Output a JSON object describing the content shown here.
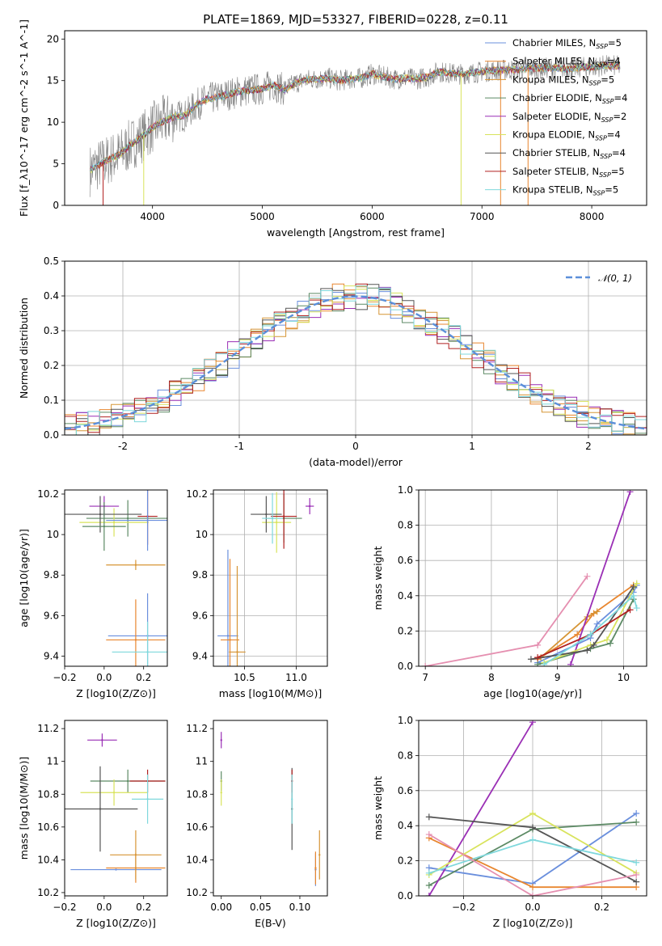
{
  "title": "PLATE=1869, MJD=53327, FIBERID=0228, z=0.11",
  "colors": [
    "#6a8fdd",
    "#e8862f",
    "#d69535",
    "#5c8a64",
    "#9a2fb5",
    "#d8e35c",
    "#555555",
    "#b02020",
    "#7fd8dc"
  ],
  "chart_data": [
    {
      "id": "spectrum",
      "type": "line",
      "xlabel": "wavelength [Angstrom, rest frame]",
      "ylabel": "Flux [f_λ10^-17 erg cm^-2 s^-1 A^-1]",
      "xlim": [
        3200,
        8500
      ],
      "ylim": [
        0,
        21
      ],
      "xticks": [
        4000,
        5000,
        6000,
        7000,
        8000
      ],
      "yticks": [
        0,
        5,
        10,
        15,
        20
      ],
      "grid": false,
      "legend": "right",
      "series": [
        {
          "name": "Chabrier MILES, N_SSP=5",
          "color": "#6a8fdd"
        },
        {
          "name": "Salpeter MILES, N_SSP=4",
          "color": "#e8862f"
        },
        {
          "name": "Kroupa MILES, N_SSP=5",
          "color": "#d69535"
        },
        {
          "name": "Chabrier ELODIE, N_SSP=4",
          "color": "#5c8a64"
        },
        {
          "name": "Salpeter ELODIE, N_SSP=2",
          "color": "#9a2fb5"
        },
        {
          "name": "Kroupa ELODIE, N_SSP=4",
          "color": "#d8e35c"
        },
        {
          "name": "Chabrier STELIB, N_SSP=4",
          "color": "#555555"
        },
        {
          "name": "Salpeter STELIB, N_SSP=5",
          "color": "#b02020"
        },
        {
          "name": "Kroupa STELIB, N_SSP=5",
          "color": "#7fd8dc"
        }
      ],
      "data_color": "#808080",
      "continuum": {
        "x": [
          3430,
          3500,
          3600,
          3700,
          3800,
          3900,
          4000,
          4100,
          4200,
          4300,
          4400,
          4500,
          4600,
          4700,
          4800,
          4900,
          5000,
          5100,
          5200,
          5300,
          5400,
          5500,
          5600,
          5700,
          5800,
          5900,
          6000,
          6100,
          6200,
          6300,
          6400,
          6500,
          6600,
          6700,
          6800,
          6900,
          7000,
          7100,
          7200,
          7300,
          7400,
          7500,
          7600,
          7700,
          7800,
          7900,
          8000,
          8100,
          8200,
          8260
        ],
        "y": [
          4.2,
          4.8,
          5.5,
          6.1,
          7.3,
          8.2,
          9.4,
          10.1,
          10.7,
          10.8,
          12.1,
          12.8,
          13.0,
          13.4,
          13.7,
          13.9,
          14.0,
          14.5,
          13.9,
          14.7,
          15.1,
          15.2,
          15.3,
          15.0,
          15.2,
          15.3,
          15.8,
          15.5,
          15.2,
          15.3,
          15.2,
          15.4,
          16.1,
          15.9,
          15.8,
          15.9,
          16.1,
          16.2,
          16.3,
          16.3,
          16.4,
          16.5,
          16.5,
          16.5,
          16.4,
          16.6,
          16.6,
          16.8,
          16.8,
          16.7
        ]
      }
    },
    {
      "id": "residuals",
      "type": "line",
      "xlabel": "(data-model)/error",
      "ylabel": "Normed distribution",
      "xlim": [
        -2.5,
        2.5
      ],
      "ylim": [
        0,
        0.5
      ],
      "xticks": [
        -2,
        -1,
        0,
        1,
        2
      ],
      "yticks": [
        0.0,
        0.1,
        0.2,
        0.3,
        0.4,
        0.5
      ],
      "grid": true,
      "legend": "top-right",
      "legend_label": "𝒩(0, 1)",
      "legend_color": "#5b8fd9",
      "bin_width": 0.1
    },
    {
      "id": "age-vs-Z",
      "type": "scatter",
      "xlabel": "Z [log10(Z/Z⊙)]",
      "ylabel": "age  [log10(age/yr)]",
      "xlim": [
        -0.2,
        0.32
      ],
      "ylim": [
        9.35,
        10.22
      ],
      "xticks": [
        -0.2,
        0.0,
        0.2
      ],
      "xticklabels": [
        "−0.2",
        "0.0",
        "0.2"
      ],
      "yticks": [
        9.4,
        9.6,
        9.8,
        10.0,
        10.2
      ],
      "grid": false,
      "points": [
        {
          "c": 0,
          "x": 0.22,
          "y": 9.5,
          "xe": 0.4,
          "ye": 0.42
        },
        {
          "c": 1,
          "x": 0.16,
          "y": 9.48,
          "xe": 0.3,
          "ye": 0.4
        },
        {
          "c": 2,
          "x": 0.16,
          "y": 9.85,
          "xe": 0.3,
          "ye": 0.05
        },
        {
          "c": 3,
          "x": 0.12,
          "y": 10.08,
          "xe": 0.42,
          "ye": 0.18
        },
        {
          "c": 4,
          "x": 0.0,
          "y": 10.14,
          "xe": 0.15,
          "ye": 0.1
        },
        {
          "c": 5,
          "x": 0.05,
          "y": 10.06,
          "xe": 0.35,
          "ye": 0.14
        },
        {
          "c": 6,
          "x": -0.02,
          "y": 10.1,
          "xe": 0.42,
          "ye": 0.18
        },
        {
          "c": 7,
          "x": 0.22,
          "y": 10.09,
          "xe": 0.1,
          "ye": 0.28
        },
        {
          "c": 8,
          "x": 0.22,
          "y": 9.42,
          "xe": 0.36,
          "ye": 0.3
        },
        {
          "c": 0,
          "x": 0.22,
          "y": 10.07,
          "xe": 0.42,
          "ye": 0.3
        },
        {
          "c": 3,
          "x": 0.0,
          "y": 10.04,
          "xe": 0.22,
          "ye": 0.24
        }
      ]
    },
    {
      "id": "age-vs-mass",
      "type": "scatter",
      "xlabel": "mass [log10(M/M⊙)]",
      "ylabel": "",
      "xlim": [
        10.2,
        11.3
      ],
      "ylim": [
        9.35,
        10.22
      ],
      "xticks": [
        10.5,
        11.0
      ],
      "xticklabels": [
        "10.5",
        "11.0"
      ],
      "yticks": [
        9.4,
        9.6,
        9.8,
        10.0,
        10.2
      ],
      "grid": true,
      "points": [
        {
          "c": 0,
          "x": 10.34,
          "y": 9.5,
          "xe": 0.2,
          "ye": 0.85
        },
        {
          "c": 1,
          "x": 10.36,
          "y": 9.48,
          "xe": 0.18,
          "ye": 0.8
        },
        {
          "c": 2,
          "x": 10.43,
          "y": 9.42,
          "xe": 0.16,
          "ye": 0.85
        },
        {
          "c": 3,
          "x": 10.88,
          "y": 10.08,
          "xe": 0.35,
          "ye": 0.24
        },
        {
          "c": 4,
          "x": 11.13,
          "y": 10.14,
          "xe": 0.08,
          "ye": 0.08
        },
        {
          "c": 5,
          "x": 10.81,
          "y": 10.06,
          "xe": 0.28,
          "ye": 0.3
        },
        {
          "c": 6,
          "x": 10.71,
          "y": 10.1,
          "xe": 0.3,
          "ye": 0.18
        },
        {
          "c": 7,
          "x": 10.88,
          "y": 10.09,
          "xe": 0.25,
          "ye": 0.32
        },
        {
          "c": 8,
          "x": 10.77,
          "y": 10.08,
          "xe": 0.2,
          "ye": 0.25
        }
      ]
    },
    {
      "id": "massweight-vs-age",
      "type": "line",
      "xlabel": "age  [log10(age/yr)]",
      "ylabel": "mass weight",
      "xlim": [
        6.9,
        10.35
      ],
      "ylim": [
        0,
        1
      ],
      "xticks": [
        7,
        8,
        9,
        10
      ],
      "xticklabels": [
        "7",
        "8",
        "9",
        "10"
      ],
      "yticks": [
        0.0,
        0.2,
        0.4,
        0.6,
        0.8,
        1.0
      ],
      "grid": true,
      "series": [
        {
          "c": 0,
          "x": [
            8.7,
            9.5,
            9.6,
            10.15,
            10.2
          ],
          "y": [
            0.02,
            0.16,
            0.24,
            0.42,
            0.46
          ]
        },
        {
          "c": 1,
          "x": [
            8.7,
            9.3,
            9.55,
            10.15
          ],
          "y": [
            0.04,
            0.18,
            0.3,
            0.46
          ]
        },
        {
          "c": 2,
          "x": [
            8.75,
            9.45,
            9.6
          ],
          "y": [
            0.05,
            0.28,
            0.31
          ]
        },
        {
          "c": 3,
          "x": [
            8.7,
            9.5,
            9.8,
            10.15
          ],
          "y": [
            0.01,
            0.1,
            0.13,
            0.38
          ]
        },
        {
          "c": 4,
          "x": [
            9.2,
            10.1
          ],
          "y": [
            0.01,
            0.99
          ]
        },
        {
          "c": 5,
          "x": [
            8.8,
            9.5,
            9.75,
            10.2
          ],
          "y": [
            0.02,
            0.12,
            0.15,
            0.47
          ]
        },
        {
          "c": 6,
          "x": [
            8.6,
            9.45,
            9.55,
            10.15
          ],
          "y": [
            0.04,
            0.09,
            0.12,
            0.45
          ]
        },
        {
          "c": 7,
          "x": [
            8.7,
            9.5,
            10.1
          ],
          "y": [
            0.05,
            0.18,
            0.32
          ]
        },
        {
          "c": 8,
          "x": [
            8.8,
            9.5,
            10.15,
            10.2
          ],
          "y": [
            0.01,
            0.18,
            0.4,
            0.33
          ]
        },
        {
          "c": 2,
          "x": [
            7.0,
            8.7,
            9.45
          ],
          "y": [
            0.0,
            0.12,
            0.51
          ],
          "alt": "#e58fb0"
        }
      ]
    },
    {
      "id": "mass-vs-Z",
      "type": "scatter",
      "xlabel": "Z [log10(Z/Z⊙)]",
      "ylabel": "mass [log10(M/M⊙)]",
      "xlim": [
        -0.2,
        0.32
      ],
      "ylim": [
        10.18,
        11.25
      ],
      "xticks": [
        -0.2,
        0.0,
        0.2
      ],
      "xticklabels": [
        "−0.2",
        "0.0",
        "0.2"
      ],
      "yticks": [
        10.2,
        10.4,
        10.6,
        10.8,
        11.0,
        11.2
      ],
      "grid": false,
      "points": [
        {
          "c": 0,
          "x": 0.06,
          "y": 10.34,
          "xe": 0.46,
          "ye": 0.0
        },
        {
          "c": 1,
          "x": 0.16,
          "y": 10.35,
          "xe": 0.3,
          "ye": 0.18
        },
        {
          "c": 2,
          "x": 0.16,
          "y": 10.43,
          "xe": 0.26,
          "ye": 0.3
        },
        {
          "c": 3,
          "x": 0.12,
          "y": 10.88,
          "xe": 0.38,
          "ye": 0.14
        },
        {
          "c": 4,
          "x": -0.01,
          "y": 11.13,
          "xe": 0.15,
          "ye": 0.08
        },
        {
          "c": 5,
          "x": 0.05,
          "y": 10.81,
          "xe": 0.34,
          "ye": 0.16
        },
        {
          "c": 6,
          "x": -0.02,
          "y": 10.71,
          "xe": 0.38,
          "ye": 0.52
        },
        {
          "c": 7,
          "x": 0.22,
          "y": 10.88,
          "xe": 0.18,
          "ye": 0.14
        },
        {
          "c": 8,
          "x": 0.22,
          "y": 10.77,
          "xe": 0.16,
          "ye": 0.3
        }
      ]
    },
    {
      "id": "mass-vs-ebv",
      "type": "scatter",
      "xlabel": "E(B-V)",
      "ylabel": "",
      "xlim": [
        -0.01,
        0.135
      ],
      "ylim": [
        10.18,
        11.25
      ],
      "xticks": [
        0.0,
        0.05,
        0.1
      ],
      "xticklabels": [
        "0.00",
        "0.05",
        "0.10"
      ],
      "yticks": [
        10.2,
        10.4,
        10.6,
        10.8,
        11.0,
        11.2
      ],
      "grid": false,
      "points": [
        {
          "c": 0,
          "x": 0.12,
          "y": 10.34,
          "ye": 0.2
        },
        {
          "c": 1,
          "x": 0.12,
          "y": 10.35,
          "ye": 0.2
        },
        {
          "c": 2,
          "x": 0.125,
          "y": 10.43,
          "ye": 0.3
        },
        {
          "c": 3,
          "x": 0.0,
          "y": 10.88,
          "ye": 0.12
        },
        {
          "c": 4,
          "x": 0.0,
          "y": 11.13,
          "ye": 0.1
        },
        {
          "c": 5,
          "x": 0.0,
          "y": 10.81,
          "ye": 0.16
        },
        {
          "c": 6,
          "x": 0.09,
          "y": 10.71,
          "ye": 0.5
        },
        {
          "c": 7,
          "x": 0.09,
          "y": 10.88,
          "ye": 0.14
        },
        {
          "c": 8,
          "x": 0.09,
          "y": 10.77,
          "ye": 0.3
        }
      ]
    },
    {
      "id": "massweight-vs-Z",
      "type": "line",
      "xlabel": "Z [log10(Z/Z⊙)]",
      "ylabel": "mass weight",
      "xlim": [
        -0.33,
        0.33
      ],
      "ylim": [
        0,
        1
      ],
      "xticks": [
        -0.2,
        0.0,
        0.2
      ],
      "xticklabels": [
        "−0.2",
        "0.0",
        "0.2"
      ],
      "yticks": [
        0.0,
        0.2,
        0.4,
        0.6,
        0.8,
        1.0
      ],
      "grid": true,
      "series": [
        {
          "c": 0,
          "x": [
            -0.3,
            0.0,
            0.3
          ],
          "y": [
            0.16,
            0.07,
            0.47
          ]
        },
        {
          "c": 1,
          "x": [
            -0.3,
            0.0,
            0.3
          ],
          "y": [
            0.33,
            0.05,
            0.05
          ]
        },
        {
          "c": 3,
          "x": [
            -0.3,
            0.0,
            0.3
          ],
          "y": [
            0.06,
            0.38,
            0.42
          ]
        },
        {
          "c": 4,
          "x": [
            -0.3,
            0.0
          ],
          "y": [
            0.0,
            0.99
          ]
        },
        {
          "c": 5,
          "x": [
            -0.3,
            0.0,
            0.3
          ],
          "y": [
            0.12,
            0.47,
            0.13
          ]
        },
        {
          "c": 6,
          "x": [
            -0.3,
            0.0,
            0.3
          ],
          "y": [
            0.45,
            0.39,
            0.08
          ]
        },
        {
          "c": 8,
          "x": [
            -0.3,
            0.0,
            0.3
          ],
          "y": [
            0.13,
            0.32,
            0.19
          ]
        },
        {
          "c": 2,
          "x": [
            -0.3,
            0.0,
            0.3
          ],
          "y": [
            0.35,
            0.0,
            0.12
          ],
          "alt": "#e58fb0"
        }
      ]
    }
  ]
}
